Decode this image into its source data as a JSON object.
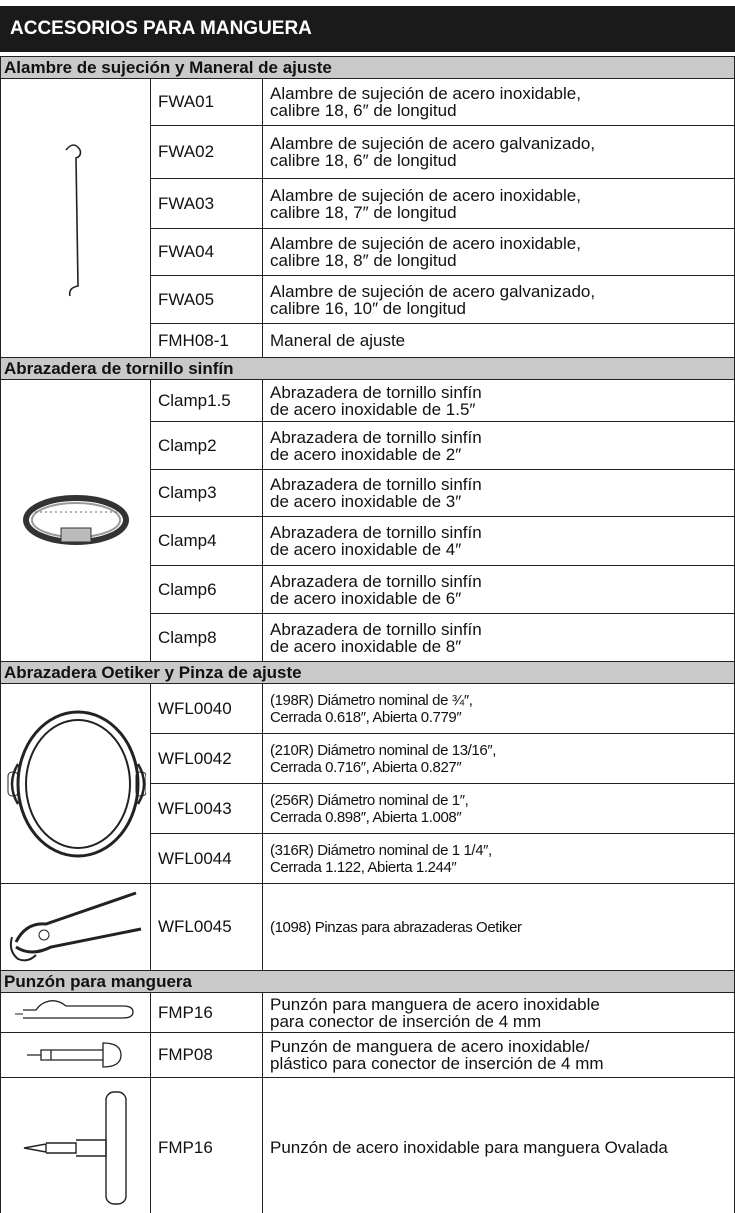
{
  "header": {
    "title": "ACCESORIOS PARA MANGUERA"
  },
  "sections": [
    {
      "title": "Alambre de sujeción y Maneral de ajuste",
      "rows": [
        {
          "code": "FWA01",
          "description": [
            "Alambre de sujeción de acero inoxidable,",
            "calibre 18, 6″ de longitud"
          ]
        },
        {
          "code": "FWA02",
          "description": [
            "Alambre de sujeción de acero galvanizado,",
            "calibre 18, 6″ de longitud"
          ]
        },
        {
          "code": "FWA03",
          "description": [
            "Alambre de sujeción de acero inoxidable,",
            "calibre 18, 7″ de longitud"
          ]
        },
        {
          "code": "FWA04",
          "description": [
            "Alambre de sujeción de acero inoxidable,",
            "calibre 18, 8″ de longitud"
          ]
        },
        {
          "code": "FWA05",
          "description": [
            "Alambre de sujeción de acero galvanizado,",
            "calibre 16, 10″ de longitud"
          ]
        },
        {
          "code": "FMH08-1",
          "description": [
            "Maneral de ajuste"
          ]
        }
      ]
    },
    {
      "title": "Abrazadera de tornillo sinfín",
      "rows": [
        {
          "code": "Clamp1.5",
          "description": [
            "Abrazadera de tornillo sinfín",
            "de acero inoxidable de 1.5″"
          ]
        },
        {
          "code": "Clamp2",
          "description": [
            "Abrazadera de tornillo sinfín",
            "de acero inoxidable de 2″"
          ]
        },
        {
          "code": "Clamp3",
          "description": [
            "Abrazadera de tornillo sinfín",
            "de acero inoxidable de 3″"
          ]
        },
        {
          "code": "Clamp4",
          "description": [
            "Abrazadera de tornillo sinfín",
            "de acero inoxidable de 4″"
          ]
        },
        {
          "code": "Clamp6",
          "description": [
            "Abrazadera de tornillo sinfín",
            "de acero inoxidable de 6″"
          ]
        },
        {
          "code": "Clamp8",
          "description": [
            "Abrazadera de tornillo sinfín",
            "de acero inoxidable de 8″"
          ]
        }
      ]
    },
    {
      "title": "Abrazadera Oetiker y Pinza de ajuste",
      "rows": [
        {
          "code": "WFL0040",
          "description": [
            "(198R) Diámetro nominal de ¾″,",
            "Cerrada 0.618″, Abierta 0.779″"
          ]
        },
        {
          "code": "WFL0042",
          "description": [
            "(210R) Diámetro nominal de 13/16″,",
            "Cerrada 0.716″, Abierta 0.827″"
          ]
        },
        {
          "code": "WFL0043",
          "description": [
            "(256R) Diámetro nominal de 1″,",
            "Cerrada 0.898″, Abierta 1.008″"
          ]
        },
        {
          "code": "WFL0044",
          "description": [
            "(316R) Diámetro nominal de 1 1/4″,",
            "Cerrada 1.122, Abierta 1.244″"
          ]
        },
        {
          "code": "WFL0045",
          "description": [
            "(1098) Pinzas para abrazaderas Oetiker"
          ]
        }
      ]
    },
    {
      "title": "Punzón para manguera",
      "rows": [
        {
          "code": "FMP16",
          "description": [
            "Punzón para manguera de acero inoxidable",
            "para conector de inserción de 4 mm"
          ]
        },
        {
          "code": "FMP08",
          "description": [
            "Punzón de manguera de acero inoxidable/",
            "plástico para conector de inserción de 4 mm"
          ]
        },
        {
          "code": "FMP16",
          "description": [
            "Punzón de acero inoxidable para manguera Ovalada"
          ]
        }
      ]
    }
  ]
}
